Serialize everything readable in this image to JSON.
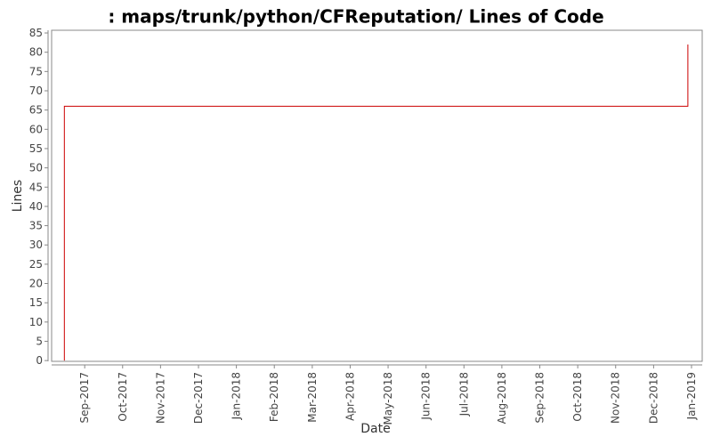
{
  "chart_data": {
    "type": "line",
    "title": ": maps/trunk/python/CFReputation/ Lines of Code",
    "x_label": "Date",
    "y_label": "Lines",
    "x": [
      2017.622,
      2017.622,
      2018.992,
      2018.992
    ],
    "series": [
      {
        "name": "Lines",
        "color": "#cc0000",
        "values": [
          0,
          66,
          66,
          82
        ]
      }
    ],
    "xlim": [
      2017.594,
      2019.0235
    ],
    "xticks": [
      {
        "value": 2017.6667,
        "label": "Sep-2017"
      },
      {
        "value": 2017.75,
        "label": "Oct-2017"
      },
      {
        "value": 2017.8333,
        "label": "Nov-2017"
      },
      {
        "value": 2017.9167,
        "label": "Dec-2017"
      },
      {
        "value": 2018.0,
        "label": "Jan-2018"
      },
      {
        "value": 2018.0833,
        "label": "Feb-2018"
      },
      {
        "value": 2018.1667,
        "label": "Mar-2018"
      },
      {
        "value": 2018.25,
        "label": "Apr-2018"
      },
      {
        "value": 2018.3333,
        "label": "May-2018"
      },
      {
        "value": 2018.4167,
        "label": "Jun-2018"
      },
      {
        "value": 2018.5,
        "label": "Jul-2018"
      },
      {
        "value": 2018.5833,
        "label": "Aug-2018"
      },
      {
        "value": 2018.6667,
        "label": "Sep-2018"
      },
      {
        "value": 2018.75,
        "label": "Oct-2018"
      },
      {
        "value": 2018.8333,
        "label": "Nov-2018"
      },
      {
        "value": 2018.9167,
        "label": "Dec-2018"
      },
      {
        "value": 2019.0,
        "label": "Jan-2019"
      }
    ],
    "ylim": [
      -0.2,
      85.7
    ],
    "yticks": [
      0,
      5,
      10,
      15,
      20,
      25,
      30,
      35,
      40,
      45,
      50,
      55,
      60,
      65,
      70,
      75,
      80,
      85
    ],
    "grid": false
  }
}
